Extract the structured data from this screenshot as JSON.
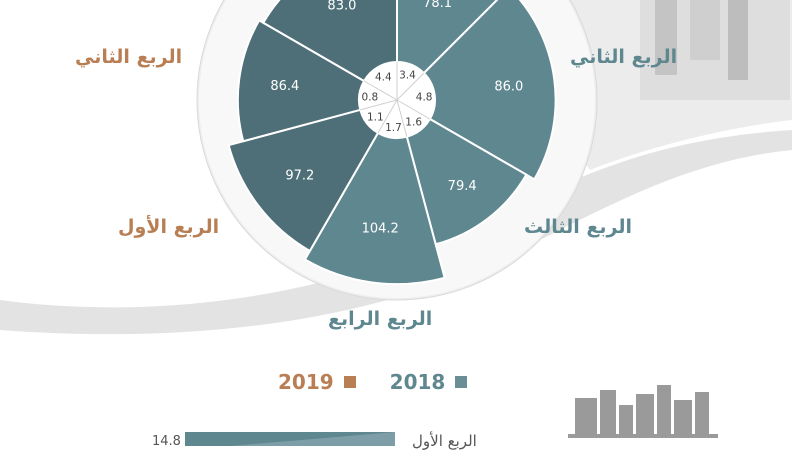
{
  "chart_data": {
    "type": "polar-bar",
    "title": "",
    "series": [
      {
        "name": "2018",
        "color": "#5f8790",
        "values": [
          {
            "quarter": "الربع الثاني",
            "outer": 78.1,
            "inner": 3.4
          },
          {
            "quarter": "الربع الثاني",
            "outer": 86.0,
            "inner": 4.8
          },
          {
            "quarter": "الربع الثالث",
            "outer": 79.4,
            "inner": 1.6
          },
          {
            "quarter": "الربع الرابع",
            "outer": 104.2,
            "inner": 1.7
          }
        ]
      },
      {
        "name": "2019",
        "color": "#4f6f78",
        "values": [
          {
            "quarter": "الربع الأول",
            "outer": 97.2,
            "inner": 1.1
          },
          {
            "quarter": "الربع الثاني",
            "outer": 86.4,
            "inner": 0.8
          },
          {
            "quarter": "الربع الثاني",
            "outer": 83.0,
            "inner": 4.4
          }
        ]
      }
    ],
    "quarter_labels": {
      "top_left": "الربع الثاني",
      "top_right": "الربع الثاني",
      "right": "الربع الثالث",
      "bottom": "الربع الرابع",
      "left": "الربع الأول"
    },
    "legend": [
      {
        "label": "2019",
        "color": "#b87e54"
      },
      {
        "label": "2018",
        "color": "#6b8e96"
      }
    ],
    "bottom_bar": {
      "label": "الربع الأول",
      "value": "14.8"
    }
  },
  "colors": {
    "label_2019": "#b87e54",
    "label_2018": "#5f8790",
    "ring": "#eeeeee"
  }
}
